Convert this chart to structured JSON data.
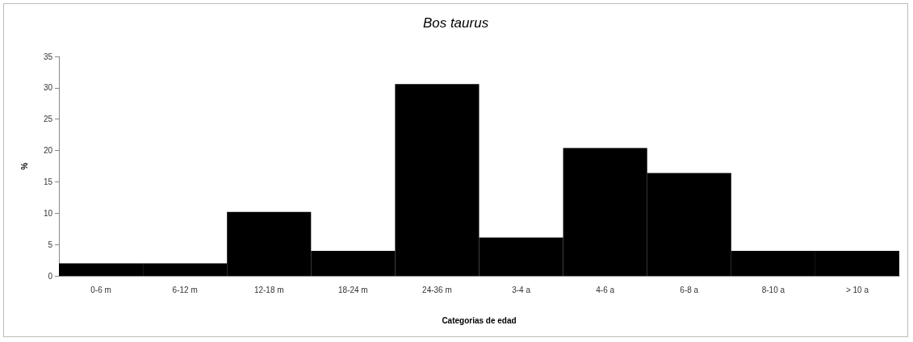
{
  "chart_data": {
    "type": "bar",
    "title": "Bos taurus",
    "xlabel": "Categorias de edad",
    "ylabel": "%",
    "categories": [
      "0-6 m",
      "6-12 m",
      "12-18 m",
      "18-24 m",
      "24-36 m",
      "3-4 a",
      "4-6 a",
      "6-8 a",
      "8-10 a",
      "> 10 a"
    ],
    "values": [
      2,
      2,
      10.2,
      4,
      30.6,
      6.1,
      20.4,
      16.4,
      4,
      4
    ],
    "color": "#000000",
    "ylim": [
      0,
      35
    ],
    "yticks": [
      0,
      5,
      10,
      15,
      20,
      25,
      30,
      35
    ],
    "grid": false
  }
}
